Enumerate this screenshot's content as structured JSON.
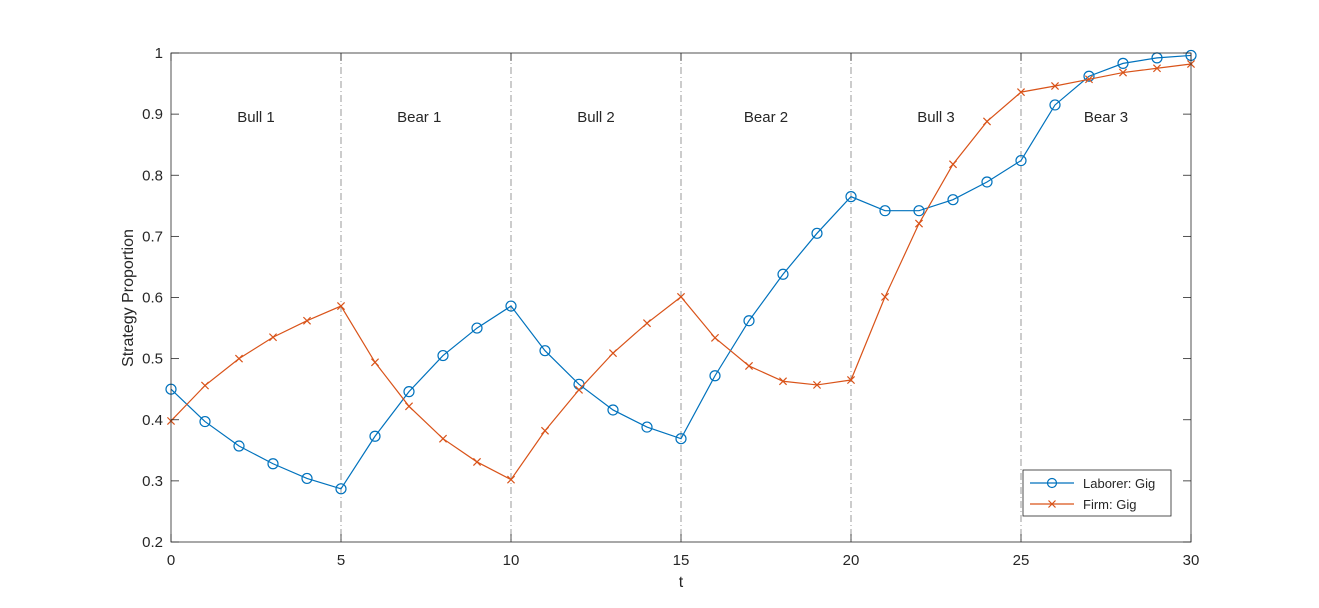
{
  "chart_data": {
    "type": "line",
    "title": "",
    "xlabel": "t",
    "ylabel": "Strategy Proportion",
    "xlim": [
      0,
      30
    ],
    "ylim": [
      0.2,
      1
    ],
    "xticks": [
      0,
      5,
      10,
      15,
      20,
      25,
      30
    ],
    "xtick_labels": [
      "0",
      "5",
      "10",
      "15",
      "20",
      "25",
      "30"
    ],
    "yticks": [
      0.2,
      0.3,
      0.4,
      0.5,
      0.6,
      0.7,
      0.8,
      0.9,
      1
    ],
    "ytick_labels": [
      "0.2",
      "0.3",
      "0.4",
      "0.5",
      "0.6",
      "0.7",
      "0.8",
      "0.9",
      "1"
    ],
    "grid": false,
    "legend_position": "bottom-right",
    "phase_boundaries": [
      5,
      10,
      15,
      20,
      25
    ],
    "phases": [
      {
        "label": "Bull 1",
        "center": 2.5
      },
      {
        "label": "Bear 1",
        "center": 7.3
      },
      {
        "label": "Bull 2",
        "center": 12.5
      },
      {
        "label": "Bear 2",
        "center": 17.5
      },
      {
        "label": "Bull 3",
        "center": 22.5
      },
      {
        "label": "Bear 3",
        "center": 27.5
      }
    ],
    "x": [
      0,
      1,
      2,
      3,
      4,
      5,
      6,
      7,
      8,
      9,
      10,
      11,
      12,
      13,
      14,
      15,
      16,
      17,
      18,
      19,
      20,
      21,
      22,
      23,
      24,
      25,
      26,
      27,
      28,
      29,
      30
    ],
    "series": [
      {
        "name": "Laborer: Gig",
        "color": "#0072BD",
        "marker": "circle",
        "values": [
          0.45,
          0.397,
          0.357,
          0.328,
          0.304,
          0.287,
          0.373,
          0.446,
          0.505,
          0.55,
          0.586,
          0.513,
          0.458,
          0.416,
          0.388,
          0.369,
          0.472,
          0.562,
          0.638,
          0.705,
          0.765,
          0.742,
          0.742,
          0.76,
          0.789,
          0.824,
          0.915,
          0.962,
          0.983,
          0.992,
          0.996
        ]
      },
      {
        "name": "Firm: Gig",
        "color": "#D95319",
        "marker": "x",
        "values": [
          0.398,
          0.456,
          0.5,
          0.535,
          0.562,
          0.586,
          0.494,
          0.422,
          0.369,
          0.331,
          0.302,
          0.382,
          0.449,
          0.509,
          0.558,
          0.601,
          0.534,
          0.488,
          0.463,
          0.457,
          0.465,
          0.601,
          0.721,
          0.818,
          0.888,
          0.936,
          0.946,
          0.957,
          0.968,
          0.975,
          0.982
        ]
      }
    ]
  }
}
